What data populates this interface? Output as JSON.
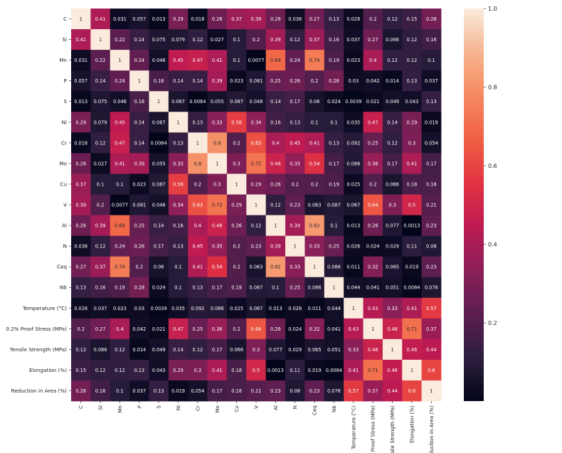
{
  "chart_data": {
    "type": "heatmap",
    "labels": [
      "C",
      "Si",
      "Mn",
      "P",
      "S",
      "Ni",
      "Cr",
      "Mo",
      "Cu",
      "V",
      "Al",
      "N",
      "Ceq",
      "Nb",
      "Temperature (°C)",
      "0.2% Proof Stress (MPa)",
      "Tensile Strength (MPa)",
      "Elongation (%)",
      "Reduction in Area (%)"
    ],
    "matrix": [
      [
        1,
        0.41,
        0.031,
        0.057,
        0.013,
        0.29,
        0.018,
        0.26,
        0.37,
        0.39,
        0.26,
        0.036,
        0.27,
        0.13,
        0.026,
        0.2,
        0.12,
        0.15,
        0.28
      ],
      [
        0.41,
        1,
        0.22,
        0.14,
        0.075,
        0.079,
        0.12,
        0.027,
        0.1,
        0.2,
        0.39,
        0.12,
        0.37,
        0.16,
        0.037,
        0.27,
        0.066,
        0.12,
        0.16
      ],
      [
        0.031,
        0.22,
        1,
        0.24,
        0.046,
        0.45,
        0.47,
        0.41,
        0.1,
        0.0077,
        0.69,
        0.24,
        0.74,
        0.19,
        0.023,
        0.4,
        0.12,
        0.12,
        0.1
      ],
      [
        0.057,
        0.14,
        0.24,
        1,
        0.18,
        0.14,
        0.14,
        0.39,
        0.023,
        0.081,
        0.25,
        0.26,
        0.2,
        0.28,
        0.03,
        0.042,
        0.014,
        0.13,
        0.037
      ],
      [
        0.013,
        0.075,
        0.046,
        0.18,
        1,
        0.067,
        0.0064,
        0.055,
        0.087,
        0.048,
        0.14,
        0.17,
        0.06,
        0.024,
        0.0039,
        0.021,
        0.049,
        0.043,
        0.13
      ],
      [
        0.29,
        0.079,
        0.45,
        0.14,
        0.067,
        1,
        0.13,
        0.33,
        0.58,
        0.34,
        0.16,
        0.13,
        0.1,
        0.1,
        0.035,
        0.47,
        0.14,
        0.29,
        0.019
      ],
      [
        0.018,
        0.12,
        0.47,
        0.14,
        0.0064,
        0.13,
        1,
        0.8,
        0.2,
        0.63,
        0.4,
        0.45,
        0.41,
        0.13,
        0.092,
        0.25,
        0.12,
        0.3,
        0.054
      ],
      [
        0.26,
        0.027,
        0.41,
        0.39,
        0.055,
        0.33,
        0.8,
        1,
        0.3,
        0.72,
        0.48,
        0.35,
        0.54,
        0.17,
        0.086,
        0.36,
        0.17,
        0.41,
        0.17
      ],
      [
        0.37,
        0.1,
        0.1,
        0.023,
        0.087,
        0.58,
        0.2,
        0.3,
        1,
        0.29,
        0.26,
        0.2,
        0.2,
        0.19,
        0.025,
        0.2,
        0.066,
        0.18,
        0.18
      ],
      [
        0.39,
        0.2,
        0.0077,
        0.081,
        0.048,
        0.34,
        0.63,
        0.72,
        0.29,
        1,
        0.12,
        0.23,
        0.063,
        0.087,
        0.067,
        0.64,
        0.3,
        0.5,
        0.21
      ],
      [
        0.26,
        0.39,
        0.69,
        0.25,
        0.14,
        0.16,
        0.4,
        0.48,
        0.26,
        0.12,
        1,
        0.39,
        0.82,
        0.1,
        0.013,
        0.26,
        0.077,
        0.0013,
        0.23
      ],
      [
        0.036,
        0.12,
        0.24,
        0.26,
        0.17,
        0.13,
        0.45,
        0.35,
        0.2,
        0.23,
        0.39,
        1,
        0.33,
        0.25,
        0.026,
        0.024,
        0.029,
        0.11,
        0.08
      ],
      [
        0.27,
        0.37,
        0.74,
        0.2,
        0.06,
        0.1,
        0.41,
        0.54,
        0.2,
        0.063,
        0.82,
        0.33,
        1,
        0.086,
        0.011,
        0.32,
        0.065,
        0.019,
        0.23
      ],
      [
        0.13,
        0.16,
        0.19,
        0.28,
        0.024,
        0.1,
        0.13,
        0.17,
        0.19,
        0.087,
        0.1,
        0.25,
        0.086,
        1,
        0.044,
        0.041,
        0.051,
        0.0084,
        0.076
      ],
      [
        0.026,
        0.037,
        0.023,
        0.03,
        0.0039,
        0.035,
        0.092,
        0.086,
        0.025,
        0.067,
        0.013,
        0.026,
        0.011,
        0.044,
        1,
        0.43,
        0.33,
        0.41,
        0.57
      ],
      [
        0.2,
        0.27,
        0.4,
        0.042,
        0.021,
        0.47,
        0.25,
        0.36,
        0.2,
        0.64,
        0.26,
        0.024,
        0.32,
        0.041,
        0.43,
        1,
        0.48,
        0.71,
        0.37
      ],
      [
        0.12,
        0.066,
        0.12,
        0.014,
        0.049,
        0.14,
        0.12,
        0.17,
        0.066,
        0.3,
        0.077,
        0.029,
        0.065,
        0.051,
        0.33,
        0.48,
        1,
        0.46,
        0.44
      ],
      [
        0.15,
        0.12,
        0.12,
        0.13,
        0.043,
        0.29,
        0.3,
        0.41,
        0.18,
        0.5,
        0.0013,
        0.11,
        0.019,
        0.0084,
        0.41,
        0.71,
        0.46,
        1,
        0.6
      ],
      [
        0.28,
        0.16,
        0.1,
        0.037,
        0.13,
        0.019,
        0.054,
        0.17,
        0.18,
        0.21,
        0.23,
        0.08,
        0.23,
        0.076,
        0.57,
        0.37,
        0.44,
        0.6,
        1
      ]
    ],
    "colorbar_ticks": [
      "0.2",
      "0.4",
      "0.6",
      "0.8",
      "1.0"
    ],
    "colorbar_tick_values": [
      0.2,
      0.4,
      0.6,
      0.8,
      1.0
    ],
    "vmin": 0.0013,
    "vmax": 1.0,
    "colormap": "rocket",
    "colormap_stops": [
      "#03051a",
      "#2c1e3e",
      "#5c1e4f",
      "#8b1f59",
      "#bd1a52",
      "#e13342",
      "#f06043",
      "#f5895f",
      "#f6b48f",
      "#faebdd"
    ],
    "grid": false,
    "legend": "colorbar-right"
  }
}
